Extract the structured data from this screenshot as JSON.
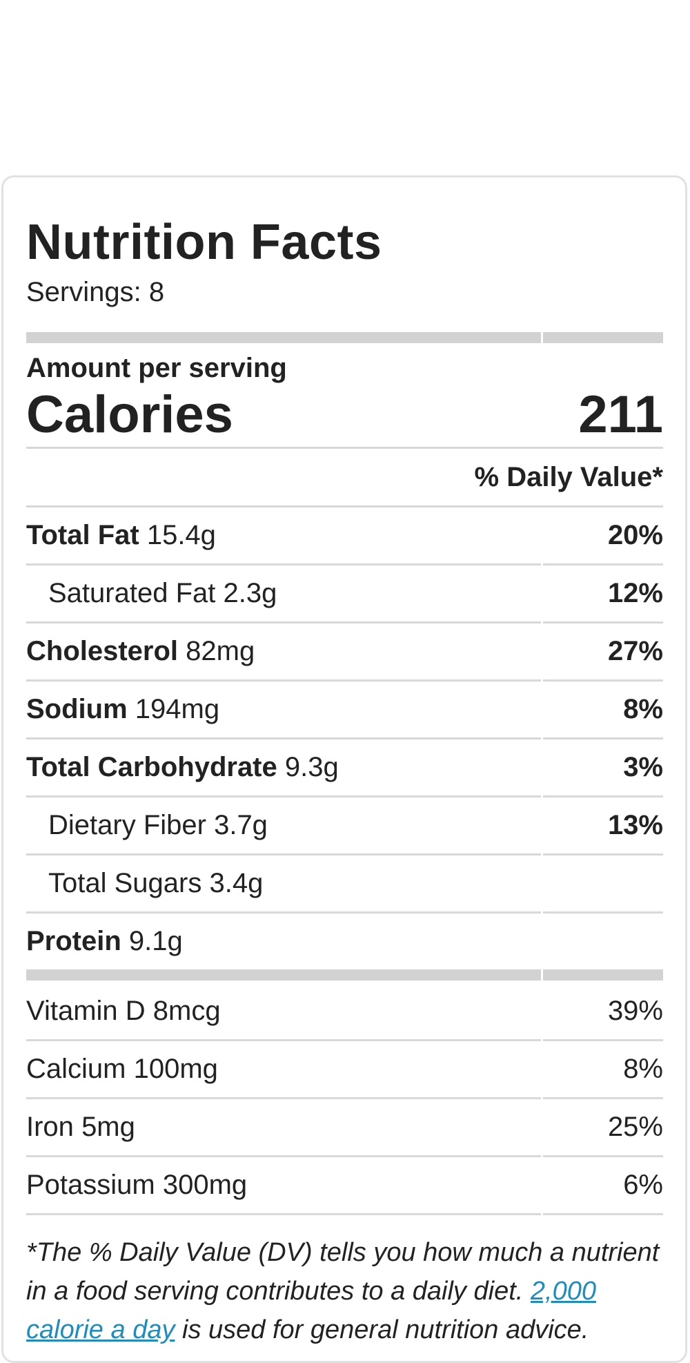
{
  "label": {
    "title": "Nutrition Facts",
    "servings": "Servings: 8",
    "amount_per_serving": "Amount per serving",
    "calories_label": "Calories",
    "calories_value": "211",
    "daily_value_header": "% Daily Value*"
  },
  "nutrients": [
    {
      "name": "Total Fat",
      "amount": "15.4g",
      "dv": "20%"
    },
    {
      "name": "Saturated Fat",
      "amount": "2.3g",
      "dv": "12%"
    },
    {
      "name": "Cholesterol",
      "amount": "82mg",
      "dv": "27%"
    },
    {
      "name": "Sodium",
      "amount": "194mg",
      "dv": "8%"
    },
    {
      "name": "Total Carbohydrate",
      "amount": "9.3g",
      "dv": "3%"
    },
    {
      "name": "Dietary Fiber",
      "amount": "3.7g",
      "dv": "13%"
    },
    {
      "name": "Total Sugars",
      "amount": "3.4g",
      "dv": ""
    },
    {
      "name": "Protein",
      "amount": "9.1g",
      "dv": ""
    }
  ],
  "vitamins": [
    {
      "name": "Vitamin D",
      "amount": "8mcg",
      "dv": "39%"
    },
    {
      "name": "Calcium",
      "amount": "100mg",
      "dv": "8%"
    },
    {
      "name": "Iron",
      "amount": "5mg",
      "dv": "25%"
    },
    {
      "name": "Potassium",
      "amount": "300mg",
      "dv": "6%"
    }
  ],
  "footnote": {
    "text_1": "*The % Daily Value (DV) tells you how much a nutrient in a food serving contributes to a daily diet. ",
    "link": "2,000 calorie a day",
    "text_2": " is used for general nutrition advice."
  }
}
